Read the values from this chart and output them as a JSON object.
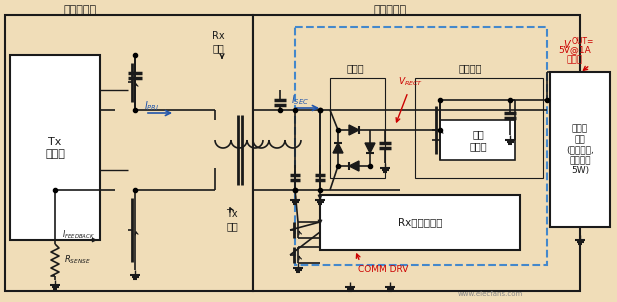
{
  "bg_color": "#f0ddb8",
  "title_tx": "无线发射器",
  "title_rx": "无线接收器",
  "label_tx_ctrl": "Tx\n控制器",
  "label_rx_coil": "Rx\n线圈",
  "label_tx_coil": "Tx\n线圈",
  "label_rectifier": "整流器",
  "label_voltage_reg": "电压调节",
  "label_linear_ctrl": "线性\n控制器",
  "label_rx_comm": "Rx通信与控制",
  "label_portable": "便携式\n设备\n(系统负载,\n功率高达\n5W)",
  "label_i_pri": "I",
  "label_i_pri_sub": "PRI",
  "label_i_sec": "I",
  "label_i_sec_sub": "SEC",
  "label_i_feedback": "I",
  "label_i_feedback_sub": "FEEDBACK",
  "label_r_sense": "R",
  "label_r_sense_sub": "SENSE",
  "label_v_rect": "V",
  "label_v_rect_sub": "RECT",
  "label_comm_drv": "COMM DRV",
  "label_vout": "V",
  "label_vout_sub": "OUT=",
  "label_vout_val": "5V@1A\n至系统",
  "arrow_color": "#2255aa",
  "red_color": "#cc0000",
  "dark_color": "#1a1a1a",
  "box_color": "#ffffff",
  "dashed_color": "#4488cc",
  "watermark": "www.elecfans.com"
}
